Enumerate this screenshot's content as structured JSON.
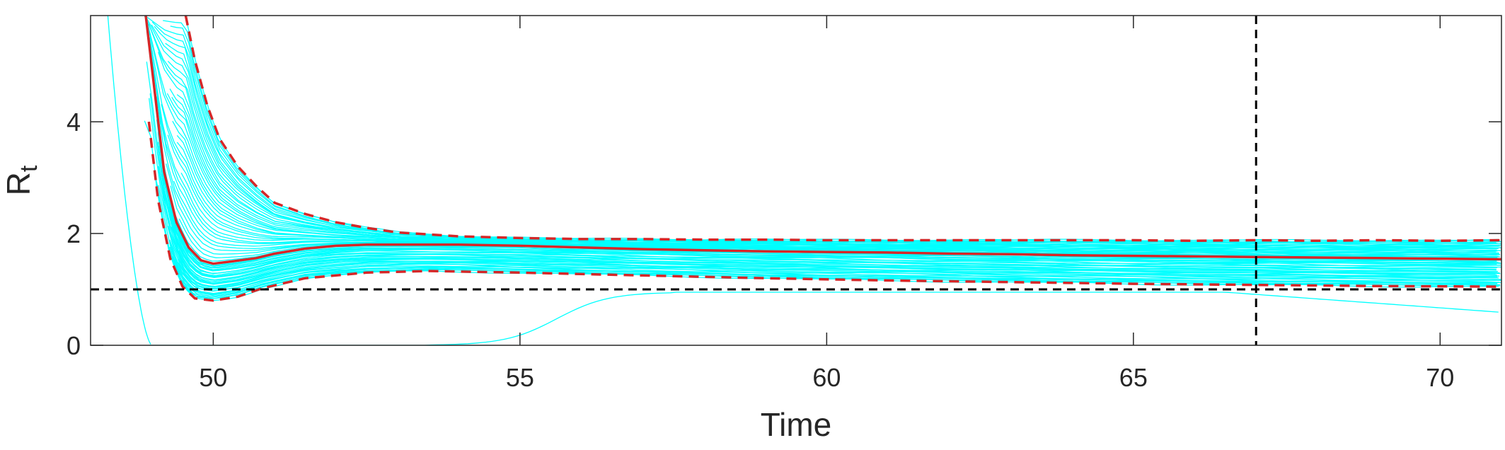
{
  "chart_data": {
    "type": "line",
    "title": "",
    "xlabel": "Time",
    "ylabel": {
      "main": "R",
      "subscript": "t"
    },
    "xlim": [
      48,
      71
    ],
    "ylim": [
      0,
      5.9
    ],
    "xticks": [
      50,
      55,
      60,
      65,
      70
    ],
    "yticks": [
      0,
      2,
      4
    ],
    "grid": false,
    "legend": "none",
    "colors": {
      "ensemble": "#00ffff",
      "median": "#d62728",
      "bounds": "#d62728",
      "reference": "#000000",
      "axes": "#262626"
    },
    "series": [
      {
        "role": "median",
        "style": "solid",
        "x": [
          48.9,
          49.05,
          49.2,
          49.4,
          49.6,
          49.8,
          50.0,
          50.3,
          50.7,
          51.0,
          51.5,
          52.0,
          52.5,
          53.0,
          54.0,
          55.0,
          56.0,
          57.0,
          58.0,
          59.0,
          60.0,
          61.0,
          62.0,
          63.0,
          64.0,
          65.0,
          66.0,
          67.0,
          68.0,
          69.0,
          70.0,
          71.0
        ],
        "y": [
          5.9,
          4.5,
          3.1,
          2.2,
          1.75,
          1.52,
          1.46,
          1.5,
          1.56,
          1.64,
          1.73,
          1.78,
          1.8,
          1.8,
          1.8,
          1.78,
          1.75,
          1.72,
          1.7,
          1.68,
          1.67,
          1.66,
          1.64,
          1.63,
          1.61,
          1.6,
          1.59,
          1.58,
          1.57,
          1.56,
          1.55,
          1.54
        ]
      },
      {
        "role": "upper-bound",
        "style": "dashed",
        "x": [
          49.55,
          49.7,
          49.9,
          50.1,
          50.4,
          50.7,
          51.0,
          51.5,
          52.0,
          52.5,
          53.0,
          54.0,
          55.0,
          56.0,
          57.0,
          58.0,
          59.0,
          60.0,
          61.0,
          62.0,
          63.0,
          64.0,
          65.0,
          66.0,
          67.0,
          68.0,
          69.0,
          70.0,
          71.0
        ],
        "y": [
          5.9,
          5.1,
          4.3,
          3.7,
          3.2,
          2.85,
          2.55,
          2.35,
          2.2,
          2.1,
          2.02,
          1.95,
          1.92,
          1.9,
          1.9,
          1.89,
          1.89,
          1.88,
          1.88,
          1.88,
          1.88,
          1.88,
          1.88,
          1.87,
          1.88,
          1.87,
          1.88,
          1.87,
          1.88
        ]
      },
      {
        "role": "lower-bound",
        "style": "dashed",
        "x": [
          48.95,
          49.1,
          49.3,
          49.5,
          49.7,
          50.0,
          50.4,
          50.8,
          51.5,
          52.5,
          53.5,
          55.0,
          57.0,
          59.0,
          61.0,
          63.0,
          65.0,
          67.0,
          69.0,
          71.0
        ],
        "y": [
          4.0,
          2.6,
          1.55,
          1.05,
          0.84,
          0.8,
          0.87,
          1.02,
          1.2,
          1.3,
          1.33,
          1.3,
          1.25,
          1.2,
          1.16,
          1.13,
          1.1,
          1.08,
          1.06,
          1.05
        ]
      }
    ],
    "reference_lines": [
      {
        "orientation": "horizontal",
        "y": 1,
        "style": "dashed"
      },
      {
        "orientation": "vertical",
        "x": 67,
        "style": "dashed"
      }
    ]
  }
}
